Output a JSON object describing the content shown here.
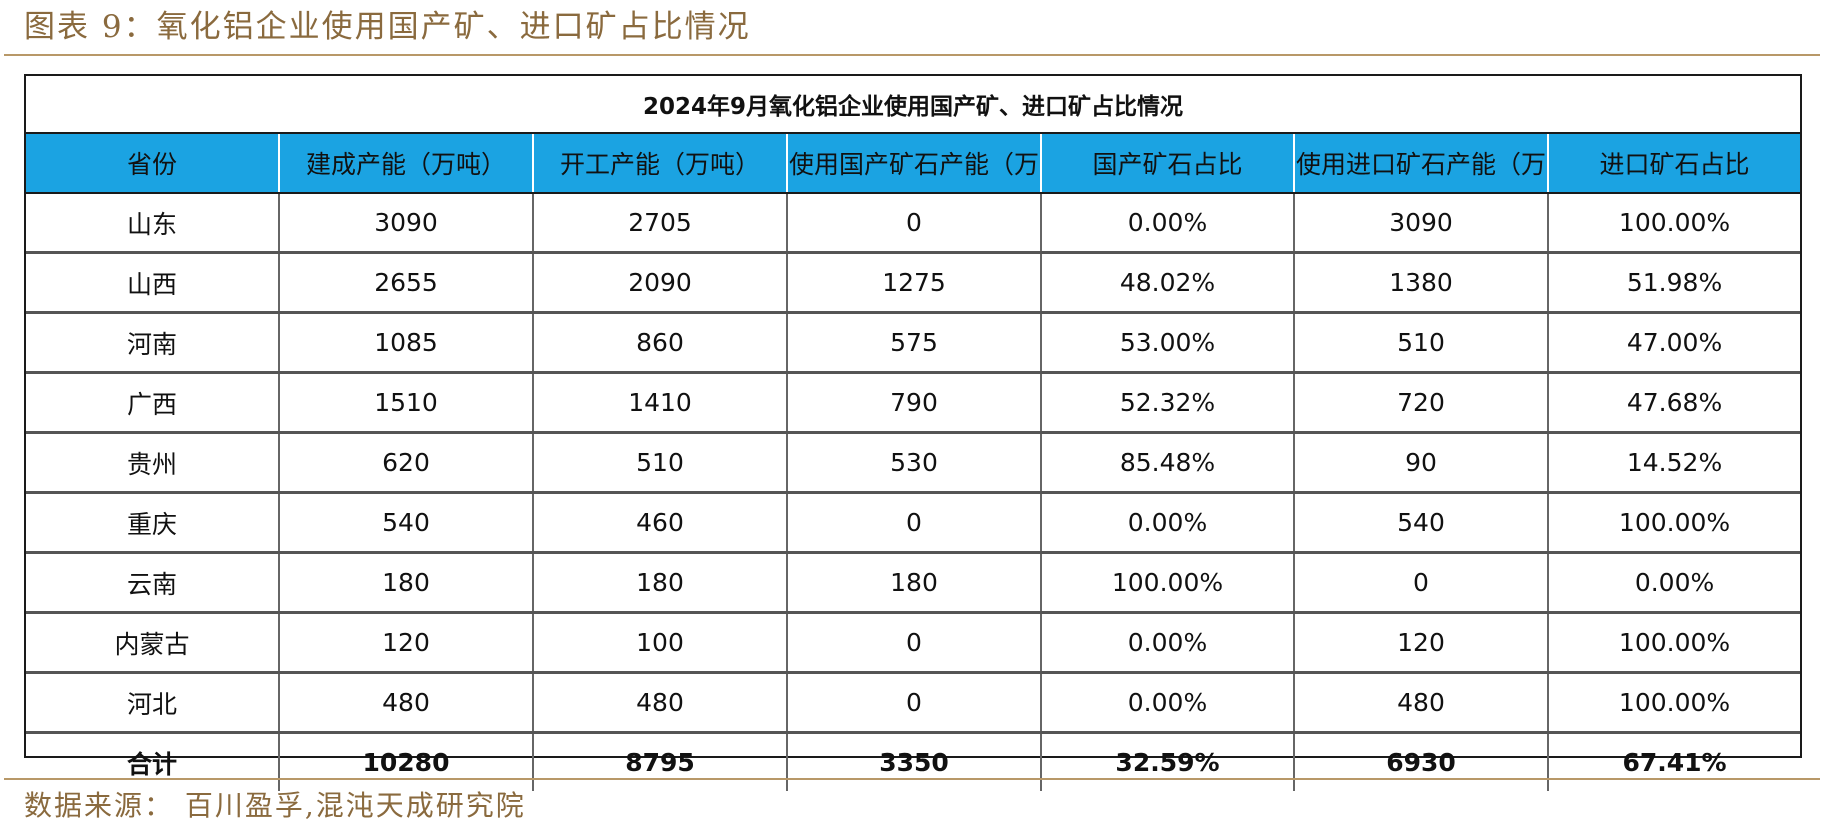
{
  "figure": {
    "title": "图表 9：氧化铝企业使用国产矿、进口矿占比情况",
    "source": "数据来源： 百川盈孚,混沌天成研究院"
  },
  "table": {
    "caption": "2024年9月氧化铝企业使用国产矿、进口矿占比情况",
    "header_color": "#1ba3e2",
    "headers": [
      "省份",
      "建成产能（万吨）",
      "开工产能（万吨）",
      "使用国产矿石产能（万吨）",
      "国产矿石占比",
      "使用进口矿石产能（万吨）",
      "进口矿石占比"
    ],
    "rows": [
      [
        "山东",
        "3090",
        "2705",
        "0",
        "0.00%",
        "3090",
        "100.00%"
      ],
      [
        "山西",
        "2655",
        "2090",
        "1275",
        "48.02%",
        "1380",
        "51.98%"
      ],
      [
        "河南",
        "1085",
        "860",
        "575",
        "53.00%",
        "510",
        "47.00%"
      ],
      [
        "广西",
        "1510",
        "1410",
        "790",
        "52.32%",
        "720",
        "47.68%"
      ],
      [
        "贵州",
        "620",
        "510",
        "530",
        "85.48%",
        "90",
        "14.52%"
      ],
      [
        "重庆",
        "540",
        "460",
        "0",
        "0.00%",
        "540",
        "100.00%"
      ],
      [
        "云南",
        "180",
        "180",
        "180",
        "100.00%",
        "0",
        "0.00%"
      ],
      [
        "内蒙古",
        "120",
        "100",
        "0",
        "0.00%",
        "120",
        "100.00%"
      ],
      [
        "河北",
        "480",
        "480",
        "0",
        "0.00%",
        "480",
        "100.00%"
      ]
    ],
    "total": [
      "合计",
      "10280",
      "8795",
      "3350",
      "32.59%",
      "6930",
      "67.41%"
    ]
  }
}
